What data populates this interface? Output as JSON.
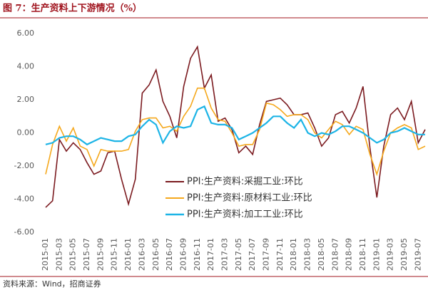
{
  "chart_data": {
    "type": "line",
    "title": "图 7：生产资料上下游情况（%）",
    "source": "资料来源：Wind，招商证券",
    "categories": [
      "2015-01",
      null,
      "2015-03",
      null,
      "2015-05",
      null,
      "2015-07",
      null,
      "2015-09",
      null,
      "2015-11",
      null,
      "2016-01",
      null,
      "2016-03",
      null,
      "2016-05",
      null,
      "2016-07",
      null,
      "2016-09",
      null,
      "2016-11",
      null,
      "2017-01",
      null,
      "2017-03",
      null,
      "2017-05",
      null,
      "2017-07",
      null,
      "2017-09",
      null,
      "2017-11",
      null,
      "2018-01",
      null,
      "2018-03",
      null,
      "2018-05",
      null,
      "2018-07",
      null,
      "2018-09",
      null,
      "2018-11",
      null,
      "2019-01",
      null,
      "2019-03",
      null,
      "2019-05",
      null,
      "2019-07",
      null
    ],
    "series": [
      {
        "name": "PPI:生产资料:采掘工业:环比",
        "color": "#7b1a1f",
        "values": [
          -4.5,
          -4.1,
          -0.4,
          -1.1,
          -0.6,
          -1.0,
          -1.8,
          -2.5,
          -2.3,
          -1.2,
          -1.1,
          -2.8,
          -4.3,
          -2.8,
          2.4,
          2.9,
          3.8,
          1.9,
          1.0,
          -0.3,
          2.8,
          4.5,
          5.2,
          2.7,
          3.5,
          0.7,
          0.9,
          0.2,
          -1.2,
          -0.8,
          -1.3,
          0.5,
          1.9,
          2.0,
          2.1,
          1.7,
          1.1,
          1.1,
          1.2,
          0.3,
          -0.8,
          -0.3,
          1.1,
          1.3,
          0.6,
          1.5,
          2.8,
          -0.9,
          -3.9,
          -0.8,
          1.1,
          1.5,
          0.8,
          1.9,
          -0.6,
          0.2
        ]
      },
      {
        "name": "PPI:生产资料:原材料工业:环比",
        "color": "#f5a81c",
        "values": [
          -2.5,
          -0.7,
          0.4,
          -0.5,
          0.3,
          -0.8,
          -1.0,
          -2.0,
          -1.0,
          -1.1,
          -1.1,
          -1.1,
          -1.0,
          0.1,
          0.8,
          0.9,
          0.9,
          0.3,
          0.4,
          0.1,
          1.0,
          1.6,
          2.7,
          2.7,
          1.5,
          0.8,
          0.7,
          0.0,
          -0.8,
          -0.7,
          -0.7,
          0.2,
          1.8,
          1.7,
          1.4,
          1.0,
          1.1,
          1.1,
          0.8,
          0.0,
          -0.3,
          0.2,
          0.7,
          0.5,
          -0.1,
          0.4,
          0.2,
          -1.3,
          -2.5,
          -1.1,
          0.0,
          0.3,
          0.5,
          0.3,
          -1.0,
          -0.8
        ]
      },
      {
        "name": "PPI:生产资料:加工工业:环比",
        "color": "#1db4e6",
        "values": [
          -0.7,
          -0.6,
          -0.3,
          -0.2,
          -0.2,
          -0.4,
          -0.7,
          -0.5,
          -0.3,
          -0.4,
          -0.5,
          -0.5,
          -0.2,
          -0.1,
          0.4,
          0.8,
          0.5,
          -0.6,
          0.1,
          0.4,
          0.3,
          0.4,
          1.4,
          1.6,
          0.6,
          0.5,
          0.5,
          0.3,
          -0.4,
          -0.2,
          0.0,
          0.3,
          0.6,
          1.0,
          1.0,
          0.6,
          0.3,
          0.8,
          0.0,
          -0.2,
          0.0,
          -0.1,
          0.1,
          0.4,
          0.4,
          0.2,
          0.0,
          -0.3,
          -0.6,
          -0.4,
          0.0,
          0.1,
          0.3,
          0.1,
          -0.1,
          -0.1
        ]
      }
    ],
    "ylim": [
      -6,
      6
    ],
    "yticks": [
      {
        "value": 6,
        "label": "6.00"
      },
      {
        "value": 4,
        "label": "4.00"
      },
      {
        "value": 2,
        "label": "2.00"
      },
      {
        "value": 0,
        "label": "0.00"
      },
      {
        "value": -2,
        "label": "-2.00"
      },
      {
        "value": -4,
        "label": "-4.00"
      },
      {
        "value": -6,
        "label": "-6.00"
      }
    ],
    "grid": false,
    "legend": "center"
  }
}
